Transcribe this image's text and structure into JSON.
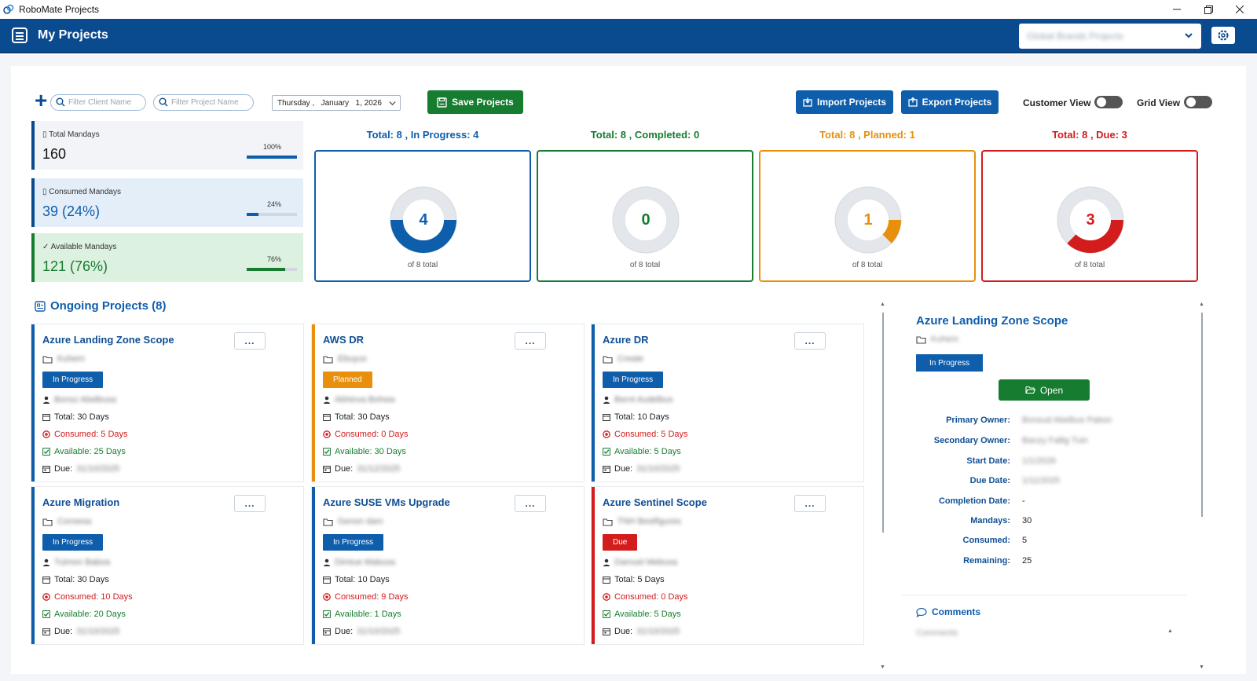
{
  "window": {
    "app_title": "RoboMate Projects",
    "minimize_icon": "minimize-icon",
    "maximize_icon": "maximize-icon",
    "close_icon": "close-icon"
  },
  "header": {
    "title": "My Projects",
    "project_selector_value": "Global Brands Projects",
    "settings_icon": "settings-icon"
  },
  "toolbar": {
    "filter_client_placeholder": "Filter Client Name",
    "filter_project_placeholder": "Filter Project Name",
    "date": {
      "weekday": "Thursday",
      "month": "January",
      "day": "1, 2026"
    },
    "save_label": "Save Projects",
    "import_label": "Import Projects",
    "export_label": "Export Projects",
    "customer_view_label": "Customer View",
    "grid_view_label": "Grid View",
    "customer_view_on": false,
    "grid_view_on": false
  },
  "stats": [
    {
      "label": "Total Mandays",
      "value": "160",
      "pct_label": "100%",
      "fraction": 1.0,
      "color": "#0f5eac",
      "bg": "#f2f4f7"
    },
    {
      "label": "Consumed Mandays",
      "value": "39 (24%)",
      "pct_label": "24%",
      "fraction": 0.24,
      "color": "#0f5eac",
      "bg": "#e3eef9"
    },
    {
      "label": "Available Mandays",
      "value": "121 (76%)",
      "pct_label": "76%",
      "fraction": 0.76,
      "color": "#167c2f",
      "bg": "#ddf1e0"
    }
  ],
  "summary": [
    {
      "title": "Total: 8 , In Progress: 4",
      "count": "4",
      "count_value": 4,
      "total": 8,
      "sub": "of 8 total",
      "color": "#0f5eac"
    },
    {
      "title": "Total: 8 , Completed: 0",
      "count": "0",
      "count_value": 0,
      "total": 8,
      "sub": "of 8 total",
      "color": "#167c2f"
    },
    {
      "title": "Total: 8 , Planned: 1",
      "count": "1",
      "count_value": 1,
      "total": 8,
      "sub": "of 8 total",
      "color": "#e8900c"
    },
    {
      "title": "Total: 8 , Due: 3",
      "count": "3",
      "count_value": 3,
      "total": 8,
      "sub": "of 8 total",
      "color": "#d31c1c"
    }
  ],
  "ongoing": {
    "title": "Ongoing Projects (8)",
    "more_label": "...",
    "projects": [
      {
        "title": "Azure Landing Zone Scope",
        "client": "Kuhem",
        "status": "In Progress",
        "status_color": "#0f5eac",
        "owner": "Bonsz Abelbusa",
        "total": "Total: 30 Days",
        "consumed": "Consumed: 5 Days",
        "available": "Available: 25 Days",
        "due_label": "Due:",
        "due": "31/10/2025",
        "accent": "#0f5eac"
      },
      {
        "title": "AWS DR",
        "client": "Ebuyus",
        "status": "Planned",
        "status_color": "#e8900c",
        "owner": "Abhinva Bohwa",
        "total": "Total: 30 Days",
        "consumed": "Consumed: 0 Days",
        "available": "Available: 30 Days",
        "due_label": "Due:",
        "due": "31/12/2025",
        "accent": "#e8900c"
      },
      {
        "title": "Azure DR",
        "client": "Create",
        "status": "In Progress",
        "status_color": "#0f5eac",
        "owner": "Bernt Audelbus",
        "total": "Total: 10 Days",
        "consumed": "Consumed: 5 Days",
        "available": "Available: 5 Days",
        "due_label": "Due:",
        "due": "31/10/2025",
        "accent": "#0f5eac"
      },
      {
        "title": "Azure Migration",
        "client": "Consesa",
        "status": "In Progress",
        "status_color": "#0f5eac",
        "owner": "Tuimon Baboa",
        "total": "Total: 30 Days",
        "consumed": "Consumed: 10 Days",
        "available": "Available: 20 Days",
        "due_label": "Due:",
        "due": "31/10/2025",
        "accent": "#0f5eac"
      },
      {
        "title": "Azure SUSE VMs Upgrade",
        "client": "Genon dam",
        "status": "In Progress",
        "status_color": "#0f5eac",
        "owner": "Dimtue Mabusa",
        "total": "Total: 10 Days",
        "consumed": "Consumed: 9 Days",
        "available": "Available: 1 Days",
        "due_label": "Due:",
        "due": "31/10/2025",
        "accent": "#0f5eac"
      },
      {
        "title": "Azure Sentinel Scope",
        "client": "TNH Bestfigures",
        "status": "Due",
        "status_color": "#d31c1c",
        "owner": "Damuel Mebusa",
        "total": "Total: 5 Days",
        "consumed": "Consumed: 0 Days",
        "available": "Available: 5 Days",
        "due_label": "Due:",
        "due": "31/10/2025",
        "accent": "#d31c1c"
      }
    ]
  },
  "detail": {
    "title": "Azure Landing Zone Scope",
    "client": "Kuhem",
    "status": "In Progress",
    "open_label": "Open",
    "fields": [
      {
        "label": "Primary Owner:",
        "value": "Bonsud Abelbus Pabon",
        "blur": true
      },
      {
        "label": "Secondary Owner:",
        "value": "Banzy Fallig Tuin",
        "blur": true
      },
      {
        "label": "Start Date:",
        "value": "1/1/2026",
        "blur": true
      },
      {
        "label": "Due Date:",
        "value": "1/11/2025",
        "blur": true
      },
      {
        "label": "Completion Date:",
        "value": "-",
        "blur": false
      },
      {
        "label": "Mandays:",
        "value": "30",
        "blur": false
      },
      {
        "label": "Consumed:",
        "value": "5",
        "blur": false
      },
      {
        "label": "Remaining:",
        "value": "25",
        "blur": false
      }
    ],
    "comments_title": "Comments",
    "comments_placeholder": "Comments"
  }
}
